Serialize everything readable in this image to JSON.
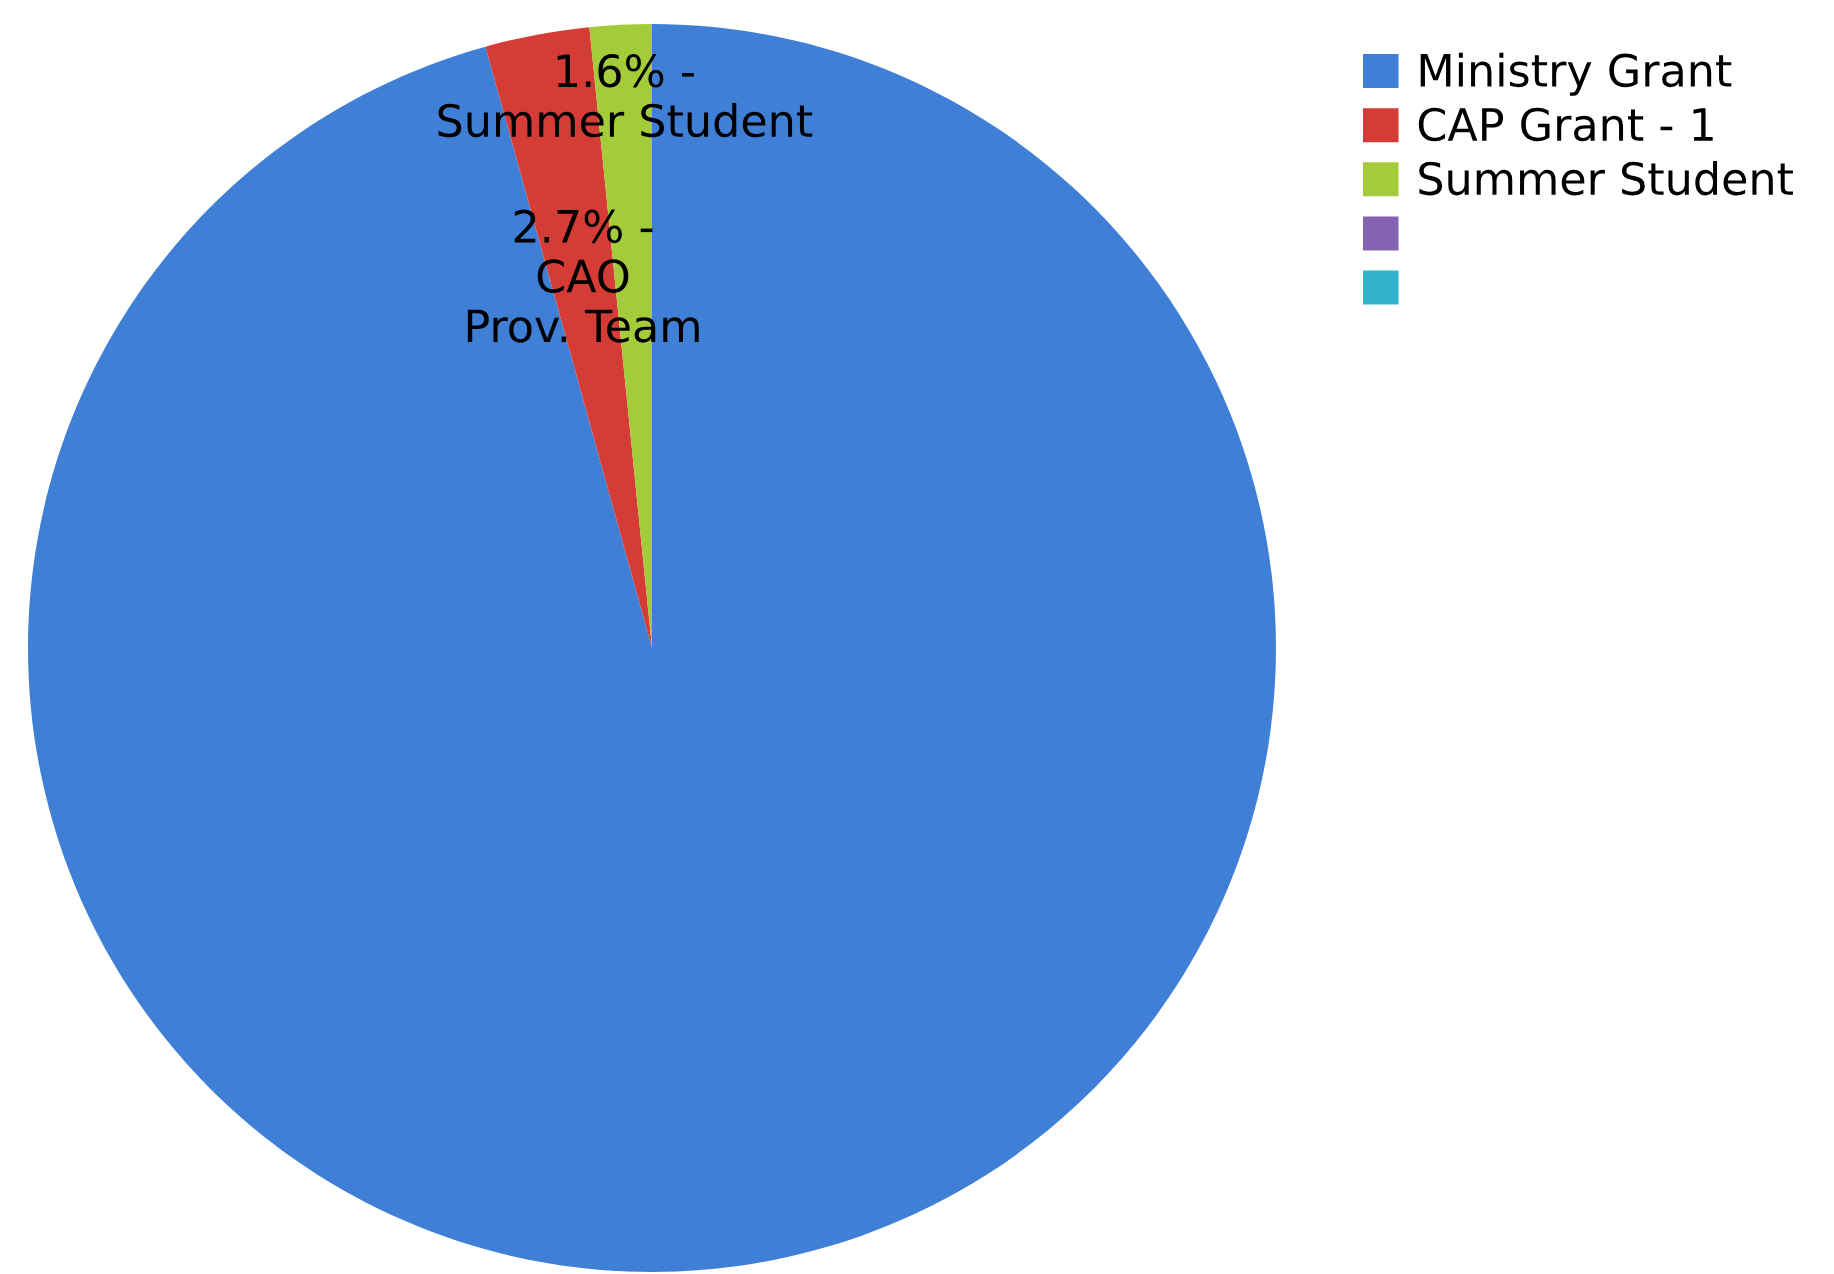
{
  "chart_data": {
    "type": "pie",
    "categories": [
      "Ministry Grant",
      "CAP Grant - 1",
      "Summer Student",
      null,
      null
    ],
    "values": [
      95.7,
      2.7,
      1.6,
      0,
      0
    ],
    "colors": [
      "#3f7fd6",
      "#d63c36",
      "#a4cc3a",
      "#8464b0",
      "#33b4cc"
    ],
    "value_labels": [
      null,
      "2.7% -\nCAO\nProv. Team",
      "1.6% -\nSummer Student",
      null,
      null
    ],
    "legend": "top right"
  }
}
